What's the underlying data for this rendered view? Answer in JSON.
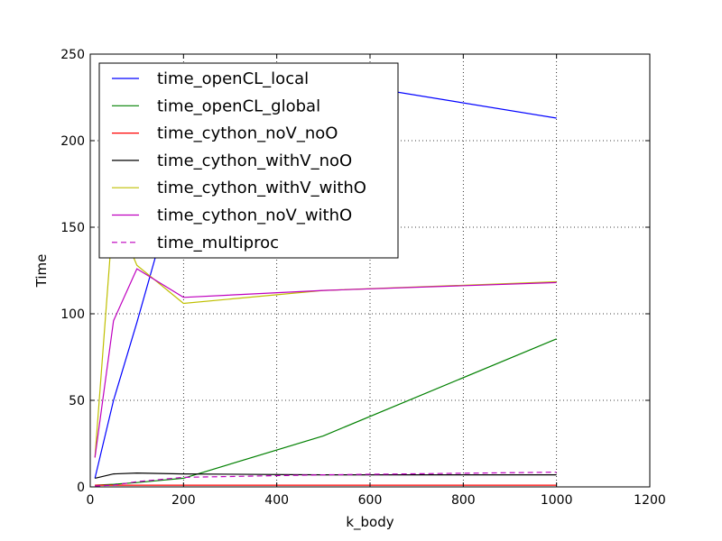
{
  "chart_data": {
    "type": "line",
    "title": "",
    "xlabel": "k_body",
    "ylabel": "Time",
    "xlim": [
      0,
      1200
    ],
    "ylim": [
      0,
      250
    ],
    "xticks": [
      0,
      200,
      400,
      600,
      800,
      1000,
      1200
    ],
    "yticks": [
      0,
      50,
      100,
      150,
      200,
      250
    ],
    "grid": true,
    "legend_position": "upper-left",
    "x": [
      10,
      50,
      100,
      200,
      500,
      1000
    ],
    "series": [
      {
        "name": "time_openCL_local",
        "color": "#0000ff",
        "dash": "solid",
        "values": [
          5,
          50,
          95,
          190,
          235,
          213
        ]
      },
      {
        "name": "time_openCL_global",
        "color": "#008000",
        "dash": "solid",
        "values": [
          1,
          1.5,
          2.5,
          5,
          29.5,
          85.5
        ]
      },
      {
        "name": "time_cython_noV_noO",
        "color": "#ff0000",
        "dash": "solid",
        "values": [
          1,
          1,
          1,
          1,
          1,
          1
        ]
      },
      {
        "name": "time_cython_withV_noO",
        "color": "#000000",
        "dash": "solid",
        "values": [
          5,
          7.5,
          8,
          7.5,
          7,
          7
        ]
      },
      {
        "name": "time_cython_withV_withO",
        "color": "#bfbf00",
        "dash": "solid",
        "values": [
          17,
          160,
          128,
          106,
          113.5,
          118.5
        ]
      },
      {
        "name": "time_cython_noV_withO",
        "color": "#bf00bf",
        "dash": "solid",
        "values": [
          17,
          96,
          126,
          109.5,
          113.5,
          118
        ]
      },
      {
        "name": "time_multiproc",
        "color": "#bf00bf",
        "dash": "dashed",
        "values": [
          0.5,
          1,
          3,
          5.5,
          7,
          8.5
        ]
      }
    ]
  }
}
